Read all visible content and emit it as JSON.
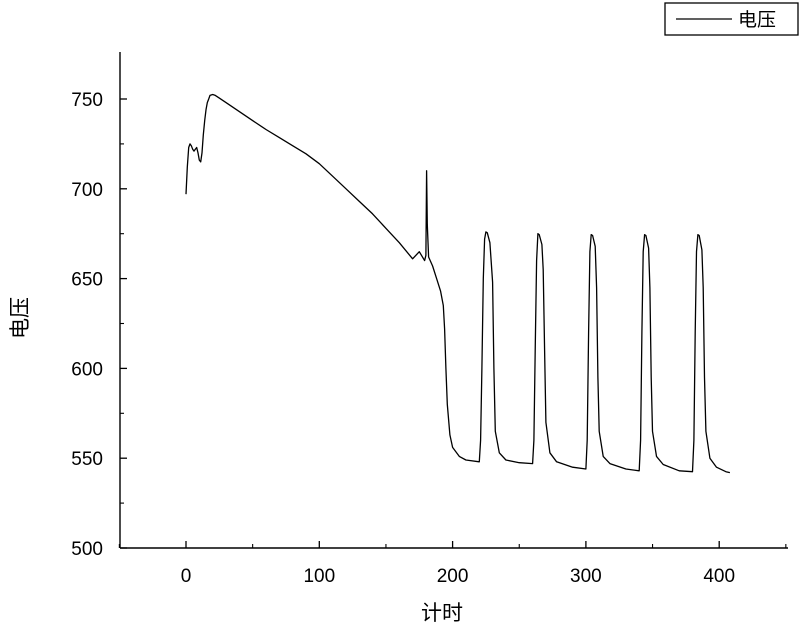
{
  "chart_data": {
    "type": "line",
    "title": "",
    "xlabel": "计时",
    "ylabel": "电压",
    "xlim": [
      -50,
      460
    ],
    "ylim": [
      500,
      775
    ],
    "x_ticks": [
      0,
      100,
      200,
      300,
      400
    ],
    "y_ticks": [
      500,
      550,
      600,
      650,
      700,
      750
    ],
    "grid": false,
    "legend": {
      "position": "top-right",
      "entries": [
        "电压"
      ]
    },
    "series": [
      {
        "name": "电压",
        "color": "#000000",
        "points": [
          [
            0,
            697
          ],
          [
            1,
            712
          ],
          [
            2,
            723
          ],
          [
            3,
            725
          ],
          [
            4,
            724
          ],
          [
            5,
            722
          ],
          [
            6,
            721
          ],
          [
            7,
            722
          ],
          [
            8,
            723
          ],
          [
            9,
            720
          ],
          [
            10,
            716
          ],
          [
            11,
            715
          ],
          [
            12,
            720
          ],
          [
            13,
            730
          ],
          [
            14,
            738
          ],
          [
            15,
            744
          ],
          [
            16,
            748
          ],
          [
            17,
            750
          ],
          [
            18,
            752
          ],
          [
            20,
            752.5
          ],
          [
            22,
            752
          ],
          [
            25,
            750.5
          ],
          [
            30,
            748
          ],
          [
            40,
            743
          ],
          [
            50,
            738
          ],
          [
            60,
            733
          ],
          [
            70,
            728.5
          ],
          [
            80,
            724
          ],
          [
            90,
            719.5
          ],
          [
            100,
            714
          ],
          [
            110,
            707
          ],
          [
            120,
            700
          ],
          [
            130,
            693
          ],
          [
            140,
            686
          ],
          [
            150,
            678
          ],
          [
            160,
            670
          ],
          [
            170,
            661
          ],
          [
            175,
            665
          ],
          [
            179,
            660
          ],
          [
            180,
            663
          ],
          [
            180.5,
            710
          ],
          [
            181,
            680
          ],
          [
            182,
            662
          ],
          [
            185,
            657
          ],
          [
            188,
            650
          ],
          [
            191,
            643
          ],
          [
            193,
            635
          ],
          [
            194,
            622
          ],
          [
            195,
            600
          ],
          [
            196,
            580
          ],
          [
            198,
            563
          ],
          [
            200,
            556
          ],
          [
            205,
            551
          ],
          [
            210,
            549
          ],
          [
            220,
            548
          ],
          [
            221,
            560
          ],
          [
            222,
            600
          ],
          [
            223,
            650
          ],
          [
            224,
            672
          ],
          [
            225,
            676
          ],
          [
            226,
            675.5
          ],
          [
            228,
            670
          ],
          [
            230,
            648
          ],
          [
            231,
            600
          ],
          [
            232,
            565
          ],
          [
            235,
            553
          ],
          [
            240,
            549
          ],
          [
            250,
            547.5
          ],
          [
            260,
            547
          ],
          [
            261,
            560
          ],
          [
            262,
            610
          ],
          [
            263,
            660
          ],
          [
            264,
            675
          ],
          [
            265,
            674.5
          ],
          [
            267,
            669
          ],
          [
            268,
            655
          ],
          [
            269,
            610
          ],
          [
            270,
            570
          ],
          [
            273,
            553
          ],
          [
            278,
            548
          ],
          [
            290,
            545
          ],
          [
            300,
            544
          ],
          [
            301,
            560
          ],
          [
            302,
            620
          ],
          [
            303,
            665
          ],
          [
            304,
            674.5
          ],
          [
            305,
            674
          ],
          [
            307,
            668
          ],
          [
            308,
            645
          ],
          [
            309,
            595
          ],
          [
            310,
            565
          ],
          [
            313,
            551
          ],
          [
            318,
            547
          ],
          [
            330,
            544
          ],
          [
            340,
            543
          ],
          [
            341,
            560
          ],
          [
            342,
            620
          ],
          [
            343,
            665
          ],
          [
            344,
            674.5
          ],
          [
            345,
            674
          ],
          [
            347,
            667
          ],
          [
            348,
            645
          ],
          [
            349,
            595
          ],
          [
            350,
            565
          ],
          [
            353,
            551
          ],
          [
            358,
            546.5
          ],
          [
            370,
            543
          ],
          [
            380,
            542.5
          ],
          [
            381,
            560
          ],
          [
            382,
            620
          ],
          [
            383,
            665
          ],
          [
            384,
            674.5
          ],
          [
            385,
            674
          ],
          [
            387,
            666
          ],
          [
            388,
            645
          ],
          [
            389,
            595
          ],
          [
            390,
            565
          ],
          [
            393,
            550
          ],
          [
            398,
            545
          ],
          [
            405,
            542.5
          ],
          [
            408,
            542
          ]
        ]
      }
    ]
  }
}
